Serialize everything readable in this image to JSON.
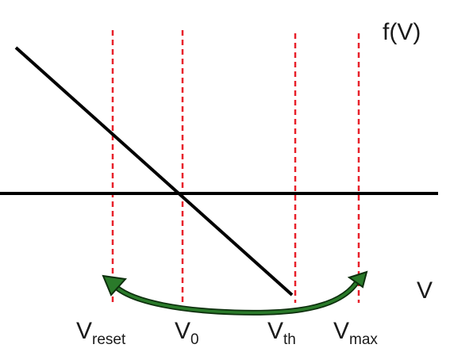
{
  "labels": {
    "function": "f(V)",
    "axis": "V",
    "v_reset_main": "V",
    "v_reset_sub": "reset",
    "v0_main": "V",
    "v0_sub": "0",
    "vth_main": "V",
    "vth_sub": "th",
    "vmax_main": "V",
    "vmax_sub": "max"
  },
  "colors": {
    "axis": "#000000",
    "line": "#000000",
    "markers": "#e8202a",
    "arrow": "#1c5a1c",
    "arrow_outline": "#0d2f0d",
    "text": "#1a1a1a"
  }
}
